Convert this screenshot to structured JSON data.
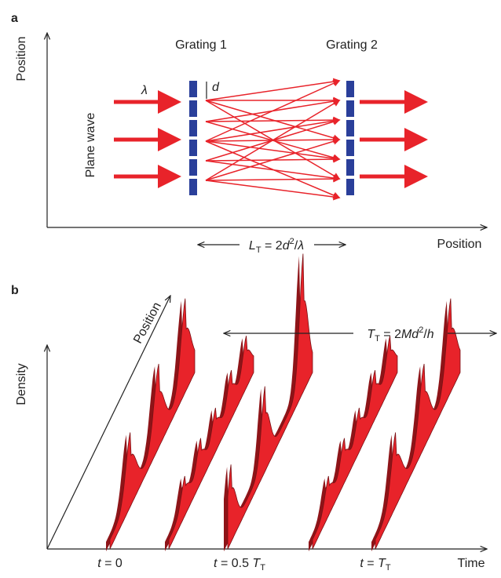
{
  "panel_a": {
    "label": "a",
    "y_axis": "Position",
    "x_axis": "Position",
    "grating_1": "Grating 1",
    "grating_2": "Grating 2",
    "wavelength": "λ",
    "period": "d",
    "source": "Plane wave",
    "talbot_length": [
      "L",
      "T",
      " = 2",
      "d",
      "2",
      "/",
      "λ"
    ]
  },
  "panel_b": {
    "label": "b",
    "y_axis": "Density",
    "diagonal_axis": "Position",
    "x_axis": "Time",
    "talbot_time": [
      "T",
      "T",
      " = 2",
      "M",
      "d",
      "2",
      "/",
      "h"
    ],
    "times": [
      [
        "t",
        " = 0"
      ],
      [
        "t",
        " = 0.5 ",
        "T",
        "T"
      ],
      [
        "t",
        " = ",
        "T",
        "T"
      ]
    ]
  }
}
